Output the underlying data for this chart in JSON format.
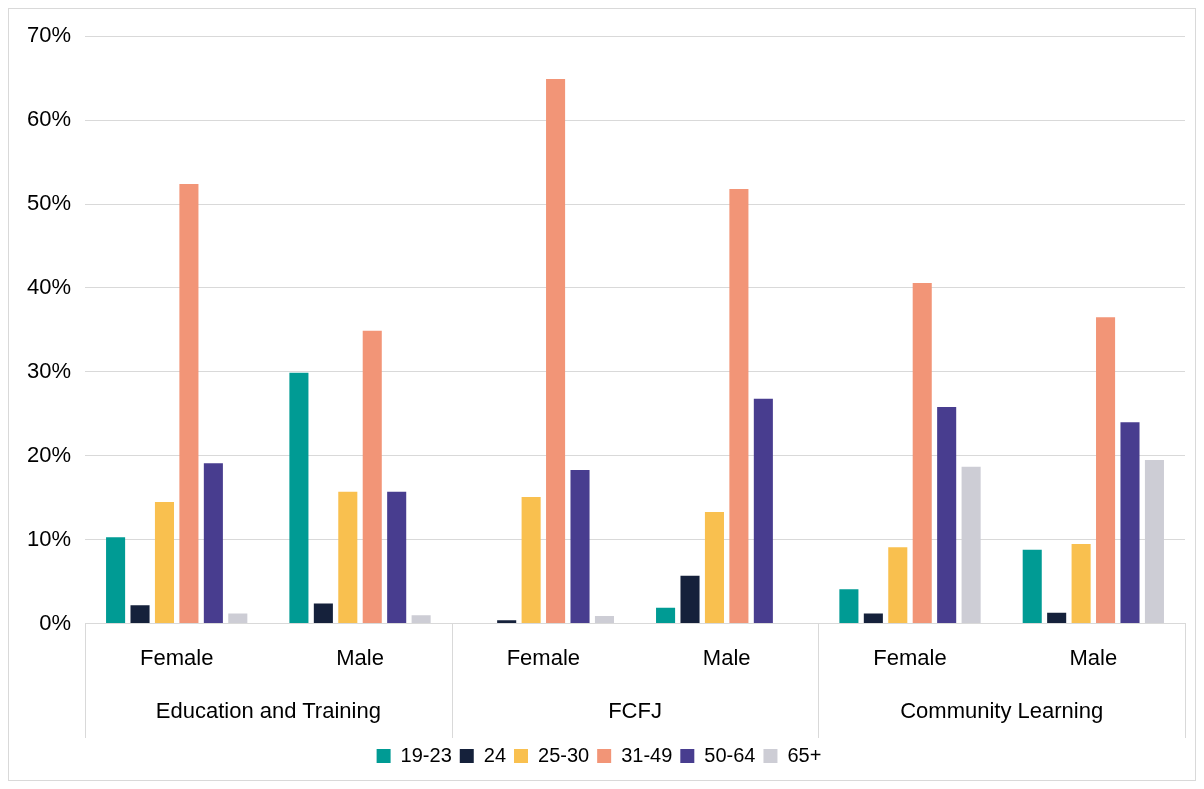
{
  "chart_data": {
    "type": "bar",
    "categories": [
      "Female",
      "Male",
      "Female",
      "Male",
      "Female",
      "Male"
    ],
    "series": [
      {
        "name": "19-23",
        "color": "#009b94",
        "values": [
          10.3,
          29.9,
          0,
          1.9,
          4.1,
          8.8
        ]
      },
      {
        "name": "24",
        "color": "#15213b",
        "values": [
          2.2,
          2.4,
          0.4,
          5.7,
          1.2,
          1.3
        ]
      },
      {
        "name": "25-30",
        "color": "#f9c04f",
        "values": [
          14.5,
          15.7,
          15.1,
          13.3,
          9.1,
          9.5
        ]
      },
      {
        "name": "31-49",
        "color": "#f29577",
        "values": [
          52.4,
          34.9,
          64.9,
          51.8,
          40.6,
          36.5
        ]
      },
      {
        "name": "50-64",
        "color": "#483d8f",
        "values": [
          19.1,
          15.7,
          18.3,
          26.8,
          25.8,
          24.0
        ]
      },
      {
        "name": "65+",
        "color": "#cdcdd5",
        "values": [
          1.2,
          1.0,
          0.9,
          0,
          18.7,
          19.5
        ]
      }
    ],
    "annotations": [
      "Education and Training",
      "FCFJ",
      "Community Learning"
    ],
    "ylim": [
      0,
      70
    ],
    "yticks": [
      {
        "value": 0,
        "label": "0%"
      },
      {
        "value": 10,
        "label": "10%"
      },
      {
        "value": 20,
        "label": "20%"
      },
      {
        "value": 30,
        "label": "30%"
      },
      {
        "value": 40,
        "label": "40%"
      },
      {
        "value": 50,
        "label": "50%"
      },
      {
        "value": 60,
        "label": "60%"
      },
      {
        "value": 70,
        "label": "70%"
      }
    ],
    "grid": "y",
    "legend": "bottom"
  }
}
